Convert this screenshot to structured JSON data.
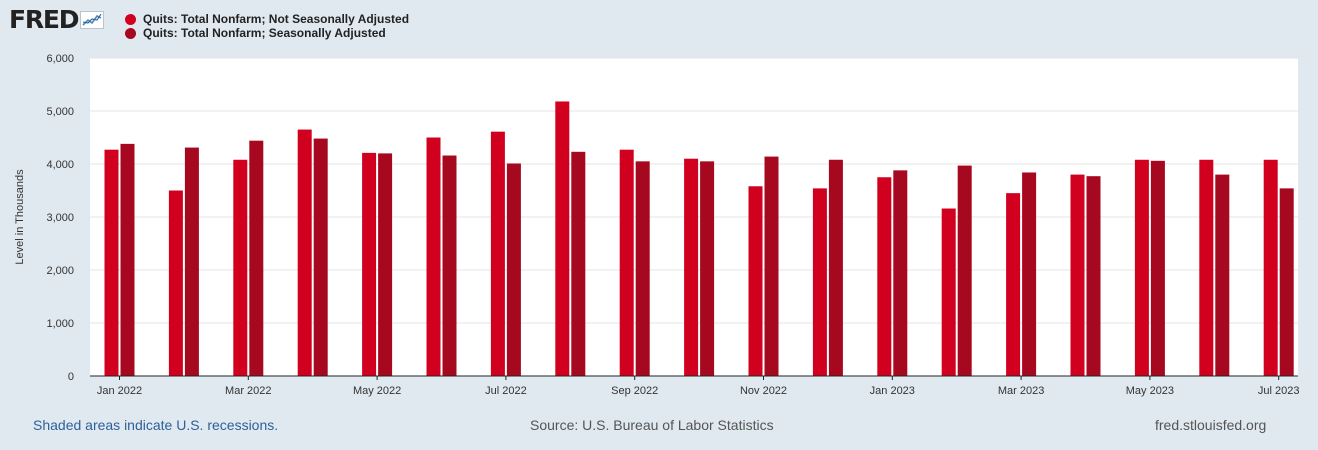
{
  "brand": {
    "logo_text": "FRED",
    "logo_icon": "line-chart-icon"
  },
  "legend": [
    {
      "label": "Quits: Total Nonfarm; Not Seasonally Adjusted",
      "color": "#d2001f"
    },
    {
      "label": "Quits: Total Nonfarm; Seasonally Adjusted",
      "color": "#a5081f"
    }
  ],
  "footer": {
    "recession_note": "Shaded areas indicate U.S. recessions.",
    "source": "Source: U.S. Bureau of Labor Statistics",
    "site": "fred.stlouisfed.org"
  },
  "chart_data": {
    "type": "bar",
    "ylabel": "Level in Thousands",
    "ylim": [
      0,
      6000
    ],
    "yticks": [
      0,
      1000,
      2000,
      3000,
      4000,
      5000,
      6000
    ],
    "ytick_labels": [
      "0",
      "1,000",
      "2,000",
      "3,000",
      "4,000",
      "5,000",
      "6,000"
    ],
    "grid": true,
    "categories": [
      "Jan 2022",
      "Feb 2022",
      "Mar 2022",
      "Apr 2022",
      "May 2022",
      "Jun 2022",
      "Jul 2022",
      "Aug 2022",
      "Sep 2022",
      "Oct 2022",
      "Nov 2022",
      "Dec 2022",
      "Jan 2023",
      "Feb 2023",
      "Mar 2023",
      "Apr 2023",
      "May 2023",
      "Jun 2023",
      "Jul 2023"
    ],
    "xtick_labels": [
      {
        "index": 0,
        "label": "Jan 2022"
      },
      {
        "index": 2,
        "label": "Mar 2022"
      },
      {
        "index": 4,
        "label": "May 2022"
      },
      {
        "index": 6,
        "label": "Jul 2022"
      },
      {
        "index": 8,
        "label": "Sep 2022"
      },
      {
        "index": 10,
        "label": "Nov 2022"
      },
      {
        "index": 12,
        "label": "Jan 2023"
      },
      {
        "index": 14,
        "label": "Mar 2023"
      },
      {
        "index": 16,
        "label": "May 2023"
      },
      {
        "index": 18,
        "label": "Jul 2023"
      }
    ],
    "series": [
      {
        "name": "Quits: Total Nonfarm; Not Seasonally Adjusted",
        "color": "#d2001f",
        "values": [
          4270,
          3500,
          4080,
          4650,
          4210,
          4500,
          4610,
          5180,
          4270,
          4100,
          3580,
          3540,
          3750,
          3160,
          3450,
          3800,
          4080,
          4080,
          4080
        ]
      },
      {
        "name": "Quits: Total Nonfarm; Seasonally Adjusted",
        "color": "#a5081f",
        "values": [
          4380,
          4310,
          4440,
          4480,
          4200,
          4160,
          4010,
          4230,
          4050,
          4050,
          4140,
          4080,
          3880,
          3970,
          3840,
          3770,
          4060,
          3800,
          3540
        ]
      }
    ]
  }
}
